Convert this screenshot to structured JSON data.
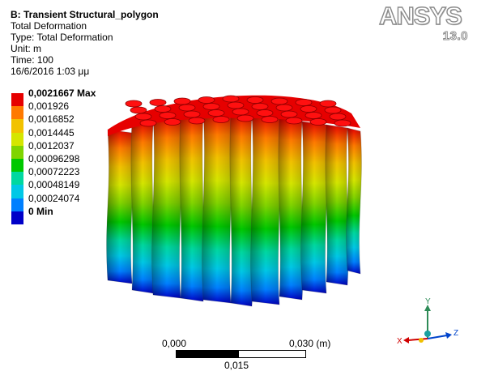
{
  "info": {
    "title": "B: Transient Structural_polygon",
    "line1": "Total Deformation",
    "line2": "Type: Total Deformation",
    "line3": "Unit: m",
    "line4": "Time: 100",
    "line5": "16/6/2016 1:03 μμ"
  },
  "logo": {
    "word": "ANSYS",
    "version": "13.0"
  },
  "legend": {
    "entries": [
      {
        "label": "0,0021667 Max",
        "color": "#e60000"
      },
      {
        "label": "0,001926",
        "color": "#ff7a00"
      },
      {
        "label": "0,0016852",
        "color": "#f2c200"
      },
      {
        "label": "0,0014445",
        "color": "#d5e600"
      },
      {
        "label": "0,0012037",
        "color": "#7fd400"
      },
      {
        "label": "0,00096298",
        "color": "#00c800"
      },
      {
        "label": "0,00072223",
        "color": "#00d8a0"
      },
      {
        "label": "0,00048149",
        "color": "#00c8e6"
      },
      {
        "label": "0,00024074",
        "color": "#0080ff"
      },
      {
        "label": "0 Min",
        "color": "#0000c8"
      }
    ]
  },
  "triad": {
    "y": "Y",
    "x": "X",
    "z": "Z"
  },
  "scale": {
    "left": "0,000",
    "right": "0,030 (m)",
    "mid": "0,015"
  },
  "colors": {
    "background": "#ffffff",
    "text": "#000000"
  }
}
